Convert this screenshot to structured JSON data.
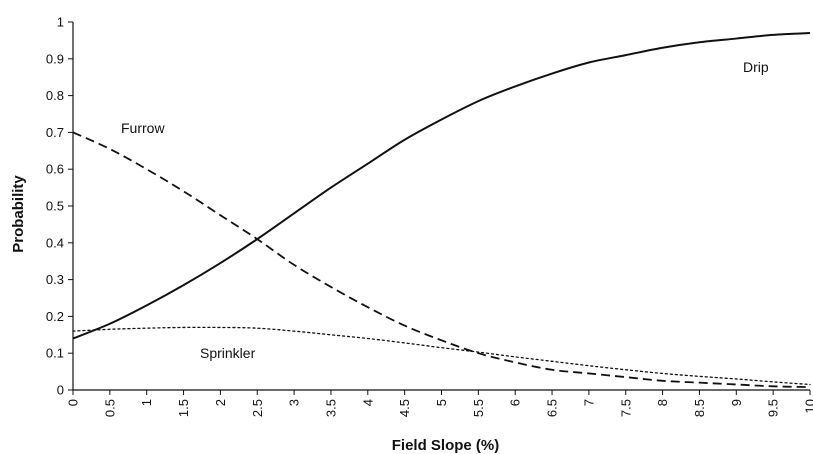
{
  "chart_data": {
    "type": "line",
    "title": "",
    "xlabel": "Field Slope (%)",
    "ylabel": "Probability",
    "xlim": [
      0,
      10
    ],
    "ylim": [
      0,
      1
    ],
    "grid": false,
    "legend": "none",
    "x_ticks": [
      "0",
      "0.5",
      "1",
      "1.5",
      "2",
      "2.5",
      "3",
      "3.5",
      "4",
      "4.5",
      "5",
      "5.5",
      "6",
      "6.5",
      "7",
      "7.5",
      "8",
      "8.5",
      "9",
      "9.5",
      "10"
    ],
    "y_ticks": [
      "0",
      "0.1",
      "0.2",
      "0.3",
      "0.4",
      "0.5",
      "0.6",
      "0.7",
      "0.8",
      "0.9",
      "1"
    ],
    "x": [
      0,
      0.5,
      1,
      1.5,
      2,
      2.5,
      3,
      3.5,
      4,
      4.5,
      5,
      5.5,
      6,
      6.5,
      7,
      7.5,
      8,
      8.5,
      9,
      9.5,
      10
    ],
    "series": [
      {
        "name": "Drip",
        "dash": "solid",
        "color": "#111111",
        "values": [
          0.14,
          0.18,
          0.23,
          0.285,
          0.345,
          0.41,
          0.48,
          0.55,
          0.615,
          0.68,
          0.735,
          0.785,
          0.825,
          0.86,
          0.89,
          0.91,
          0.93,
          0.945,
          0.955,
          0.965,
          0.97
        ]
      },
      {
        "name": "Furrow",
        "dash": "dashed",
        "color": "#111111",
        "values": [
          0.7,
          0.655,
          0.6,
          0.54,
          0.475,
          0.41,
          0.34,
          0.28,
          0.225,
          0.175,
          0.135,
          0.1,
          0.075,
          0.055,
          0.045,
          0.035,
          0.025,
          0.02,
          0.015,
          0.01,
          0.008
        ]
      },
      {
        "name": "Sprinkler",
        "dash": "dotted",
        "color": "#111111",
        "values": [
          0.16,
          0.165,
          0.168,
          0.17,
          0.17,
          0.168,
          0.16,
          0.15,
          0.14,
          0.128,
          0.115,
          0.103,
          0.09,
          0.078,
          0.066,
          0.055,
          0.045,
          0.037,
          0.03,
          0.022,
          0.015
        ]
      }
    ],
    "annotations": [
      {
        "text": "Drip",
        "series": "Drip"
      },
      {
        "text": "Furrow",
        "series": "Furrow"
      },
      {
        "text": "Sprinkler",
        "series": "Sprinkler"
      }
    ]
  }
}
